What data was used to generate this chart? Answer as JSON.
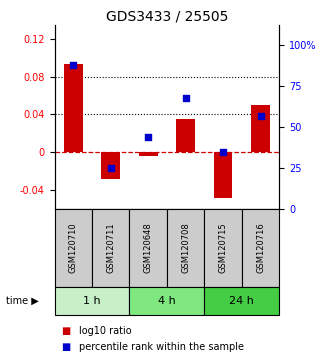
{
  "title": "GDS3433 / 25505",
  "samples": [
    "GSM120710",
    "GSM120711",
    "GSM120648",
    "GSM120708",
    "GSM120715",
    "GSM120716"
  ],
  "log10_ratio": [
    0.093,
    -0.028,
    -0.004,
    0.035,
    -0.048,
    0.05
  ],
  "percentile_rank": [
    88,
    25,
    44,
    68,
    35,
    57
  ],
  "time_groups": [
    {
      "label": "1 h",
      "samples": [
        "GSM120710",
        "GSM120711"
      ],
      "color": "#c8f0c8"
    },
    {
      "label": "4 h",
      "samples": [
        "GSM120648",
        "GSM120708"
      ],
      "color": "#7ee87e"
    },
    {
      "label": "24 h",
      "samples": [
        "GSM120715",
        "GSM120716"
      ],
      "color": "#44cc44"
    }
  ],
  "bar_color": "#cc0000",
  "dot_color": "#0000cc",
  "ylim_left": [
    -0.06,
    0.135
  ],
  "ylim_right": [
    0,
    112.5
  ],
  "yticks_left": [
    -0.04,
    0,
    0.04,
    0.08,
    0.12
  ],
  "yticks_left_labels": [
    "-0.04",
    "0",
    "0.04",
    "0.08",
    "0.12"
  ],
  "yticks_right": [
    0,
    25,
    50,
    75,
    100
  ],
  "yticks_right_labels": [
    "0",
    "25",
    "50",
    "75",
    "100%"
  ],
  "hlines": [
    0.04,
    0.08
  ],
  "sample_box_color": "#cccccc",
  "title_fontsize": 10,
  "tick_fontsize": 7,
  "label_fontsize": 7,
  "legend_fontsize": 7,
  "bar_width": 0.5
}
